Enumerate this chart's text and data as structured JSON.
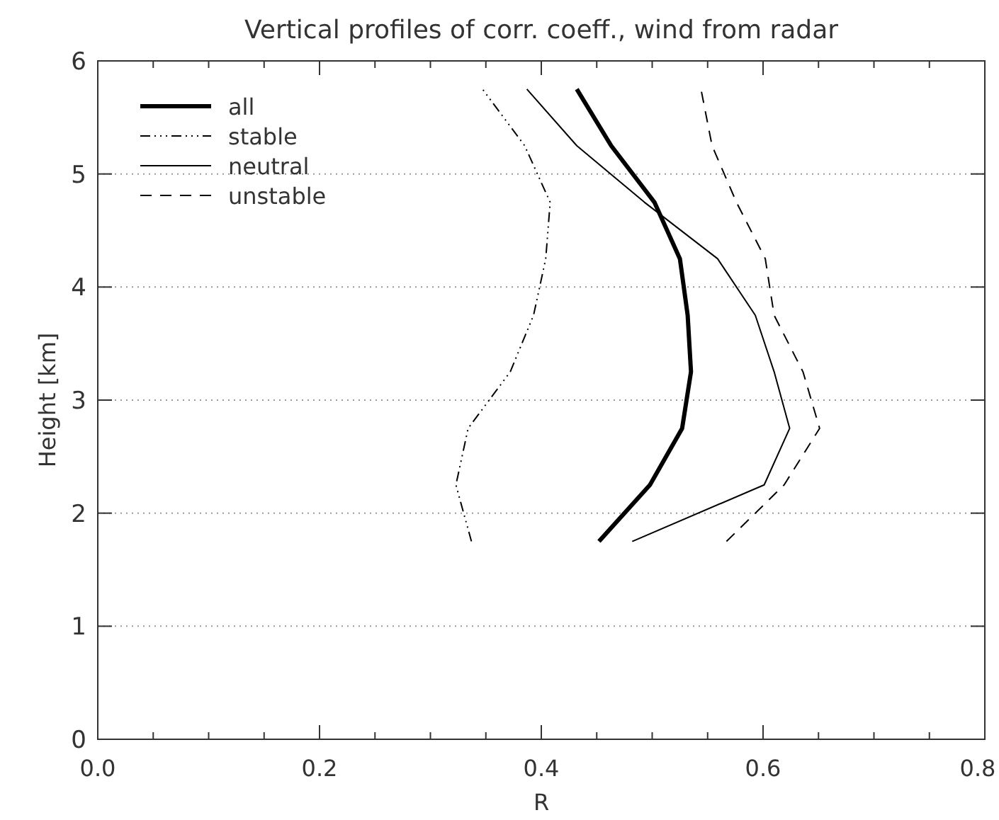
{
  "chart_data": {
    "type": "line",
    "title": "Vertical profiles of corr. coeff., wind from radar",
    "xlabel": "R",
    "ylabel": "Height [km]",
    "xlim": [
      0,
      0.8
    ],
    "ylim": [
      0,
      6
    ],
    "xticks": [
      {
        "value": 0,
        "label": "0.0"
      },
      {
        "value": 0.05,
        "label": null
      },
      {
        "value": 0.1,
        "label": null
      },
      {
        "value": 0.15,
        "label": null
      },
      {
        "value": 0.2,
        "label": "0.2"
      },
      {
        "value": 0.25,
        "label": null
      },
      {
        "value": 0.3,
        "label": null
      },
      {
        "value": 0.35,
        "label": null
      },
      {
        "value": 0.4,
        "label": "0.4"
      },
      {
        "value": 0.45,
        "label": null
      },
      {
        "value": 0.5,
        "label": null
      },
      {
        "value": 0.55,
        "label": null
      },
      {
        "value": 0.6,
        "label": "0.6"
      },
      {
        "value": 0.65,
        "label": null
      },
      {
        "value": 0.7,
        "label": null
      },
      {
        "value": 0.75,
        "label": null
      },
      {
        "value": 0.8,
        "label": "0.8"
      }
    ],
    "yticks": [
      0,
      1,
      2,
      3,
      4,
      5,
      6
    ],
    "grid": "y",
    "legend": "top left",
    "marker": "none",
    "series": [
      {
        "name": "all",
        "color": "#000000",
        "line_style": "solid",
        "x": [
          0.452,
          0.498,
          0.527,
          0.535,
          0.532,
          0.525,
          0.502,
          0.463,
          0.432
        ],
        "values": [
          1.75,
          2.25,
          2.75,
          3.25,
          3.75,
          4.25,
          4.75,
          5.25,
          5.75
        ]
      },
      {
        "name": "stable",
        "color": "#000000",
        "line_style": "dotted",
        "x": [
          0.337,
          0.323,
          0.334,
          0.372,
          0.393,
          0.404,
          0.408,
          0.385,
          0.347
        ],
        "values": [
          1.75,
          2.25,
          2.75,
          3.25,
          3.75,
          4.25,
          4.75,
          5.25,
          5.75
        ]
      },
      {
        "name": "neutral",
        "color": "#000000",
        "line_style": "solid",
        "x": [
          0.482,
          0.601,
          0.624,
          0.61,
          0.593,
          0.559,
          0.493,
          0.432,
          0.387
        ],
        "values": [
          1.75,
          2.25,
          2.75,
          3.25,
          3.75,
          4.25,
          4.75,
          5.25,
          5.75
        ]
      },
      {
        "name": "unstable",
        "color": "#000000",
        "line_style": "dashed",
        "x": [
          0.567,
          0.619,
          0.651,
          0.636,
          0.61,
          0.602,
          0.576,
          0.554,
          0.544
        ],
        "values": [
          1.75,
          2.25,
          2.75,
          3.25,
          3.75,
          4.25,
          4.75,
          5.25,
          5.75
        ]
      }
    ]
  }
}
